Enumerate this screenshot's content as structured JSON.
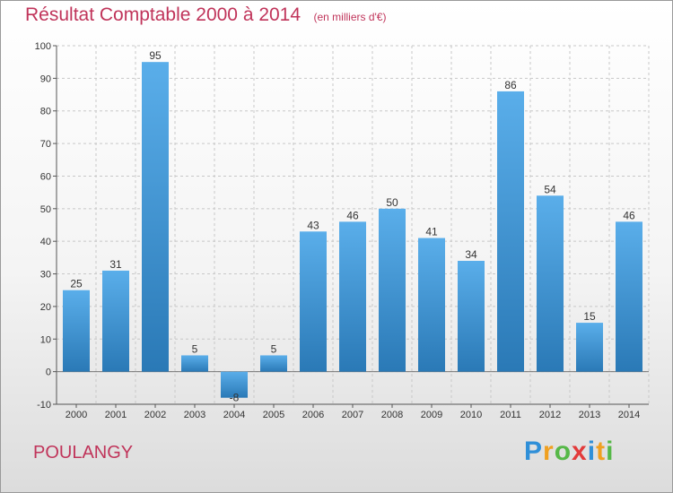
{
  "header": {
    "title": "Résultat Comptable 2000 à 2014",
    "subtitle": "(en milliers d'€)"
  },
  "footer": {
    "location": "POULANGY",
    "brand_letters": [
      {
        "char": "P",
        "color": "#2f8fd8"
      },
      {
        "char": "r",
        "color": "#f0a020"
      },
      {
        "char": "o",
        "color": "#56b848"
      },
      {
        "char": "x",
        "color": "#e23a3a"
      },
      {
        "char": "i",
        "color": "#2f8fd8"
      },
      {
        "char": "t",
        "color": "#f0a020"
      },
      {
        "char": "i",
        "color": "#56b848"
      }
    ]
  },
  "colors": {
    "bar_light": "#5aaeea",
    "bar_dark": "#2a79b6",
    "accent": "#c0345a",
    "grid": "#c8c8c8",
    "axis_text": "#333333"
  },
  "chart_data": {
    "type": "bar",
    "categories": [
      "2000",
      "2001",
      "2002",
      "2003",
      "2004",
      "2005",
      "2006",
      "2007",
      "2008",
      "2009",
      "2010",
      "2011",
      "2012",
      "2013",
      "2014"
    ],
    "values": [
      25,
      31,
      95,
      5,
      -8,
      5,
      43,
      46,
      50,
      41,
      34,
      86,
      54,
      15,
      46
    ],
    "data_labels": [
      "25",
      "31",
      "95",
      "5",
      "-8",
      "5",
      "43",
      "46",
      "50",
      "41",
      "34",
      "86",
      "54",
      "15",
      "46"
    ],
    "ylim": [
      -10,
      100
    ],
    "yticks": [
      -10,
      0,
      10,
      20,
      30,
      40,
      50,
      60,
      70,
      80,
      90,
      100
    ],
    "grid": true,
    "xlabel": "",
    "ylabel": ""
  }
}
